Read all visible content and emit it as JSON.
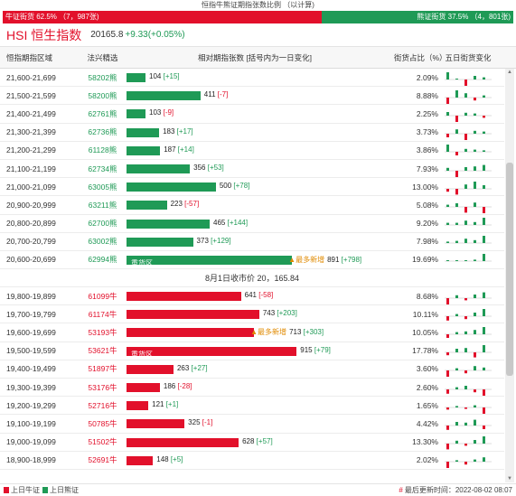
{
  "title": "恒指牛熊证期指张数比例 （以计算)",
  "ratio": {
    "bull_label": "牛证街货 62.5% （7，987张)",
    "bear_label": "熊证街货 37.5% （4，801张)",
    "bull_fraction": 0.625,
    "bull_color": "#e2102b",
    "bear_color": "#1f9a56"
  },
  "index": {
    "name": "HSI 恒生指数",
    "value": "20165.8",
    "change": "+9.33(+0.05%)"
  },
  "header": {
    "range": "恒指期指区域",
    "code": "法兴精选",
    "bar": "相对期指张数 [括号内为一日变化]",
    "share": "街货占比（%）",
    "spark": "五日街货变化"
  },
  "bear_rows": [
    {
      "range": "21,600-21,699",
      "code": "58202熊",
      "count": "104",
      "change": "[+15]",
      "share": "2.09%",
      "fraction": 0.074,
      "spark": [
        1,
        0,
        -1,
        0.5,
        0.3
      ]
    },
    {
      "range": "21,500-21,599",
      "code": "58200熊",
      "count": "411",
      "change": "[-7]",
      "share": "8.88%",
      "fraction": 0.288,
      "spark": [
        -1,
        1,
        0.6,
        -0.4,
        0.3
      ]
    },
    {
      "range": "21,400-21,499",
      "code": "62761熊",
      "count": "103",
      "change": "[-9]",
      "share": "2.25%",
      "fraction": 0.074,
      "spark": [
        0.5,
        -1,
        0.4,
        0.3,
        -0.3
      ]
    },
    {
      "range": "21,300-21,399",
      "code": "62736熊",
      "count": "183",
      "change": "[+17]",
      "share": "3.73%",
      "fraction": 0.127,
      "spark": [
        -0.5,
        0.6,
        -1,
        0.4,
        0.3
      ]
    },
    {
      "range": "21,200-21,299",
      "code": "61128熊",
      "count": "187",
      "change": "[+14]",
      "share": "3.86%",
      "fraction": 0.131,
      "spark": [
        1,
        -0.5,
        0.4,
        0.3,
        0.2
      ]
    },
    {
      "range": "21,100-21,199",
      "code": "62734熊",
      "count": "356",
      "change": "[+53]",
      "share": "7.93%",
      "fraction": 0.247,
      "spark": [
        0.4,
        -1,
        0.5,
        0.6,
        0.8
      ]
    },
    {
      "range": "21,000-21,099",
      "code": "63005熊",
      "count": "500",
      "change": "[+78]",
      "share": "13.00%",
      "fraction": 0.348,
      "spark": [
        -0.4,
        -0.8,
        0.6,
        1,
        0.5
      ]
    },
    {
      "range": "20,900-20,999",
      "code": "63211熊",
      "count": "223",
      "change": "[-57]",
      "share": "5.08%",
      "fraction": 0.157,
      "spark": [
        0.3,
        0.5,
        -0.8,
        0.6,
        -1
      ]
    },
    {
      "range": "20,800-20,899",
      "code": "62700熊",
      "count": "465",
      "change": "[+144]",
      "share": "9.20%",
      "fraction": 0.324,
      "spark": [
        0.3,
        0.3,
        0.6,
        0.4,
        1
      ]
    },
    {
      "range": "20,700-20,799",
      "code": "63002熊",
      "count": "373",
      "change": "[+129]",
      "share": "7.98%",
      "fraction": 0.259,
      "spark": [
        0.2,
        0.3,
        0.6,
        0.4,
        1
      ]
    },
    {
      "range": "20,600-20,699",
      "code": "62994熊",
      "count": "891",
      "change": "[+798]",
      "share": "19.69%",
      "fraction": 0.645,
      "heavy": "重货区",
      "most_new": "▲最多新增",
      "spark": [
        0.1,
        0.1,
        0.1,
        0.2,
        1
      ]
    }
  ],
  "close_text": "8月1日收市价 20，165.84",
  "bull_rows": [
    {
      "range": "19,800-19,899",
      "code": "61099牛",
      "count": "641",
      "change": "[-58]",
      "share": "8.68%",
      "fraction": 0.446,
      "spark": [
        -1,
        0.4,
        -0.3,
        0.5,
        0.8
      ]
    },
    {
      "range": "19,700-19,799",
      "code": "61174牛",
      "count": "743",
      "change": "[+203]",
      "share": "10.11%",
      "fraction": 0.517,
      "spark": [
        -0.6,
        0.3,
        -0.4,
        0.5,
        1
      ]
    },
    {
      "range": "19,600-19,699",
      "code": "53193牛",
      "count": "713",
      "change": "[+303]",
      "share": "10.05%",
      "fraction": 0.497,
      "most_new": "▲最多新增",
      "spark": [
        -0.5,
        0.3,
        0.4,
        0.6,
        1
      ]
    },
    {
      "range": "19,500-19,599",
      "code": "53621牛",
      "count": "915",
      "change": "[+79]",
      "share": "17.78%",
      "fraction": 0.663,
      "heavy": "重货区",
      "spark": [
        -0.4,
        0.5,
        0.6,
        -0.7,
        1
      ]
    },
    {
      "range": "19,400-19,499",
      "code": "51897牛",
      "count": "263",
      "change": "[+27]",
      "share": "3.60%",
      "fraction": 0.183,
      "spark": [
        -1,
        0.3,
        -0.4,
        0.6,
        0.4
      ]
    },
    {
      "range": "19,300-19,399",
      "code": "53176牛",
      "count": "186",
      "change": "[-28]",
      "share": "2.60%",
      "fraction": 0.13,
      "spark": [
        -0.6,
        0.3,
        0.5,
        -0.4,
        -1
      ]
    },
    {
      "range": "19,200-19,299",
      "code": "52716牛",
      "count": "121",
      "change": "[+1]",
      "share": "1.65%",
      "fraction": 0.085,
      "spark": [
        -0.3,
        0.2,
        -0.2,
        0.3,
        -1
      ]
    },
    {
      "range": "19,100-19,199",
      "code": "50785牛",
      "count": "325",
      "change": "[-1]",
      "share": "4.42%",
      "fraction": 0.226,
      "spark": [
        -0.6,
        0.5,
        0.4,
        0.8,
        -0.5
      ]
    },
    {
      "range": "19,000-19,099",
      "code": "51502牛",
      "count": "628",
      "change": "[+57]",
      "share": "13.30%",
      "fraction": 0.437,
      "spark": [
        -0.8,
        0.4,
        -0.3,
        0.5,
        1
      ]
    },
    {
      "range": "18,900-18,999",
      "code": "52691牛",
      "count": "148",
      "change": "[+5]",
      "share": "2.02%",
      "fraction": 0.103,
      "spark": [
        -1,
        0.2,
        -0.4,
        0.3,
        0.6
      ]
    }
  ],
  "footer": {
    "legend_bull": "上日牛证",
    "legend_bear": "上日熊证",
    "updated": "最后更新时间：2022-08-02 08:07"
  },
  "colors": {
    "bull": "#e2102b",
    "bear": "#1f9a56",
    "most_new": "#e08a00"
  }
}
